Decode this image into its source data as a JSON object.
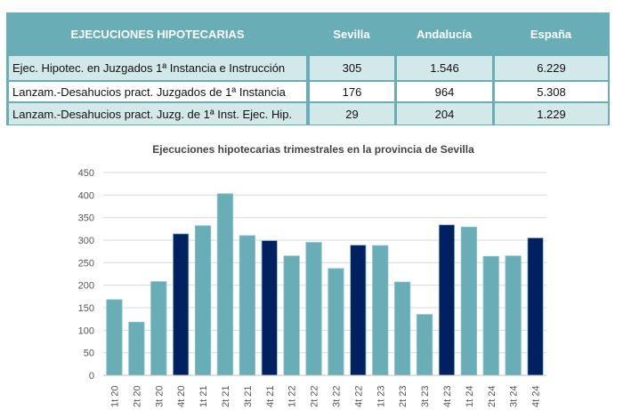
{
  "table": {
    "headers": [
      "EJECUCIONES HIPOTECARIAS",
      "Sevilla",
      "Andalucía",
      "España"
    ],
    "rows": [
      {
        "label": "Ejec. Hipotec. en Juzgados 1ª Instancia e Instrucción",
        "values": [
          "305",
          "1.546",
          "6.229"
        ]
      },
      {
        "label": "Lanzam.-Desahucios pract. Juzgados de 1ª Instancia",
        "values": [
          "176",
          "964",
          "5.308"
        ]
      },
      {
        "label": "Lanzam.-Desahucios pract. Juzg. de 1ª Inst. Ejec. Hip.",
        "values": [
          "29",
          "204",
          "1.229"
        ]
      }
    ],
    "colors": {
      "header": "#69aeb6",
      "row_light": "#d3e8e8",
      "row_white": "#ffffff"
    }
  },
  "chart_data": {
    "type": "bar",
    "title": "Ejecuciones hipotecarias trimestrales en la provincia de Sevilla",
    "categories": [
      "1t 20",
      "2t 20",
      "3t 20",
      "4t 20",
      "1t 21",
      "2t 21",
      "3t 21",
      "4t 21",
      "1t 22",
      "2t 22",
      "3t 22",
      "4t 22",
      "1t 23",
      "2t 23",
      "3t 23",
      "4t 23",
      "1t 24",
      "2t 24",
      "3t 24",
      "4t 24"
    ],
    "values": [
      168,
      118,
      208,
      314,
      332,
      403,
      310,
      299,
      265,
      295,
      237,
      289,
      288,
      207,
      135,
      334,
      329,
      264,
      265,
      305
    ],
    "ylim": [
      0,
      450
    ],
    "yticks": [
      "0",
      "50",
      "100",
      "150",
      "200",
      "250",
      "300",
      "350",
      "400",
      "450"
    ],
    "grid": true,
    "colors": {
      "bar": "#69aeb6",
      "q4_bar": "#002060"
    }
  }
}
